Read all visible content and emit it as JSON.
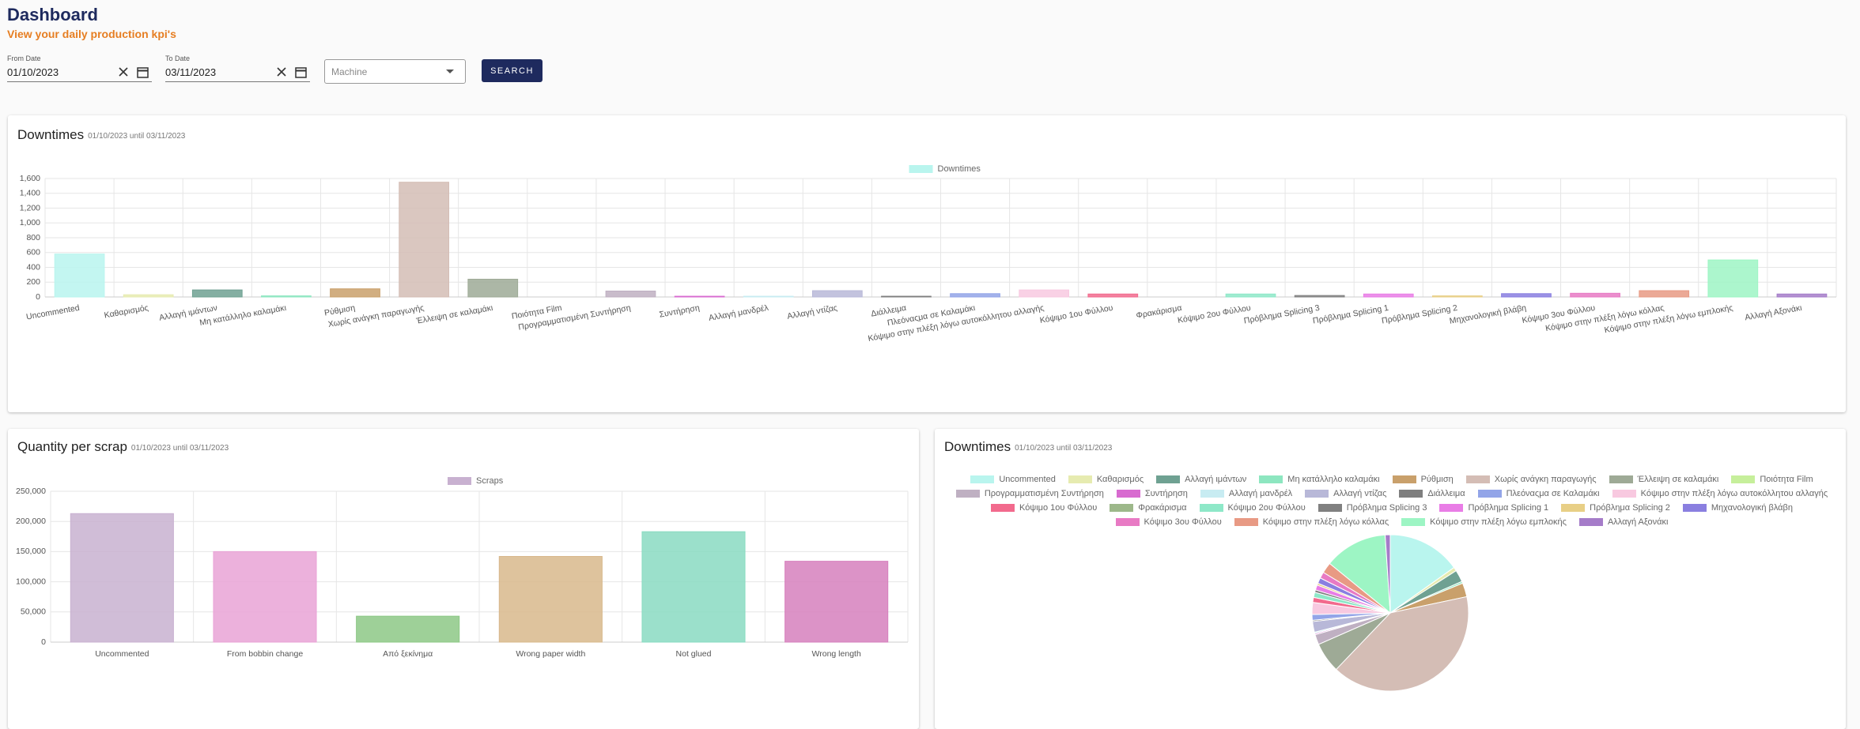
{
  "header": {
    "title": "Dashboard",
    "subtitle": "View your daily production kpi's"
  },
  "filters": {
    "from_label": "From Date",
    "from_value": "01/10/2023",
    "to_label": "To Date",
    "to_value": "03/11/2023",
    "machine_placeholder": "Machine",
    "search": "SEARCH"
  },
  "chart_data": [
    {
      "type": "bar",
      "title": "Downtimes",
      "subtitle": "01/10/2023 until 03/11/2023",
      "categories": [
        "Uncommented",
        "Καθαρισμός",
        "Αλλαγή ιμάντων",
        "Μη κατάλληλο καλαμάκι",
        "Ρύθμιση",
        "Χωρίς ανάγκη παραγωγής",
        "Έλλειψη σε καλαμάκι",
        "Ποιότητα Film",
        "Προγραμματισμένη Συντήρηση",
        "Συντήρηση",
        "Αλλαγή μανδρέλ",
        "Αλλαγή ντίζας",
        "Διάλλειμα",
        "Πλεόναςμα σε Καλαμάκι",
        "Κόψιμο στην πλέξη λόγω αυτοκόλλητου αλλαγής",
        "Κόψιμο 1ου Φύλλου",
        "Φρακάρισμα",
        "Κόψιμο 2ου Φύλλου",
        "Πρόβλημα Splicing 3",
        "Πρόβλημα Splicing 1",
        "Πρόβλημα Splicing 2",
        "Μηχανολογική βλάβη",
        "Κόψιμο 3ου Φύλλου",
        "Κόψιμο στην πλέξη λόγω κόλλας",
        "Κόψιμο στην πλέξη λόγω εμπλοκής",
        "Αλλαγή Αξονάκι"
      ],
      "series": [
        {
          "name": "Downtimes",
          "values": [
            580,
            30,
            95,
            15,
            110,
            1550,
            240,
            0,
            80,
            10,
            10,
            85,
            10,
            45,
            95,
            40,
            0,
            40,
            20,
            40,
            15,
            45,
            50,
            85,
            500,
            40
          ]
        }
      ],
      "colors": [
        "#b9f5ee",
        "#e6ebb0",
        "#6fa192",
        "#8de6c0",
        "#c9a06b",
        "#d4bdb5",
        "#9eaa96",
        "#c6ef9b",
        "#bfb0c2",
        "#d86bd0",
        "#c8ecf2",
        "#b8b8d8",
        "#7f7f7f",
        "#93a5e8",
        "#f8c9e0",
        "#f26a8d",
        "#9db88a",
        "#8ee8c8",
        "#808080",
        "#e97de6",
        "#e8cf86",
        "#8a7fe0",
        "#e87ac4",
        "#e89a84",
        "#9df5c4",
        "#a57cc9"
      ],
      "ylim": [
        0,
        1600
      ],
      "yticks": [
        0,
        200,
        400,
        600,
        800,
        {
          "value": 1000,
          "label": "1,000"
        },
        {
          "value": 1200,
          "label": "1,200"
        },
        {
          "value": 1400,
          "label": "1,400"
        },
        {
          "value": 1600,
          "label": "1,600"
        }
      ],
      "grid": true
    },
    {
      "type": "bar",
      "title": "Quantity per scrap",
      "subtitle": "01/10/2023 until 03/11/2023",
      "categories": [
        "Uncommented",
        "From bobbin change",
        "Από ξεκίνημα",
        "Wrong paper width",
        "Not glued",
        "Wrong length"
      ],
      "series": [
        {
          "name": "Scraps",
          "values": [
            213000,
            150000,
            43000,
            142000,
            183000,
            134000
          ]
        }
      ],
      "colors": [
        "#c8b1d0",
        "#e9a3d6",
        "#8dc886",
        "#d8b88c",
        "#8adbc2",
        "#d680bd"
      ],
      "ylim": [
        0,
        250000
      ],
      "yticks": [
        0,
        {
          "value": 50000,
          "label": "50,000"
        },
        {
          "value": 100000,
          "label": "100,000"
        },
        {
          "value": 150000,
          "label": "150,000"
        },
        {
          "value": 200000,
          "label": "200,000"
        },
        {
          "value": 250000,
          "label": "250,000"
        }
      ],
      "grid": true
    },
    {
      "type": "pie",
      "title": "Downtimes",
      "subtitle": "01/10/2023 until 03/11/2023",
      "categories": [
        "Uncommented",
        "Καθαρισμός",
        "Αλλαγή ιμάντων",
        "Μη κατάλληλο καλαμάκι",
        "Ρύθμιση",
        "Χωρίς ανάγκη παραγωγής",
        "Έλλειψη σε καλαμάκι",
        "Ποιότητα Film",
        "Προγραμματισμένη Συντήρηση",
        "Συντήρηση",
        "Αλλαγή μανδρέλ",
        "Αλλαγή ντίζας",
        "Διάλλειμα",
        "Πλεόναςμα σε Καλαμάκι",
        "Κόψιμο στην πλέξη λόγω αυτοκόλλητου αλλαγής",
        "Κόψιμο 1ου Φύλλου",
        "Φρακάρισμα",
        "Κόψιμο 2ου Φύλλου",
        "Πρόβλημα Splicing 3",
        "Πρόβλημα Splicing 1",
        "Πρόβλημα Splicing 2",
        "Μηχανολογική βλάβη",
        "Κόψιμο 3ου Φύλλου",
        "Κόψιμο στην πλέξη λόγω κόλλας",
        "Κόψιμο στην πλέξη λόγω εμπλοκής",
        "Αλλαγή Αξονάκι"
      ],
      "values": [
        580,
        30,
        95,
        15,
        110,
        1550,
        240,
        0,
        80,
        10,
        10,
        85,
        10,
        45,
        95,
        40,
        0,
        40,
        20,
        40,
        15,
        45,
        50,
        85,
        500,
        40
      ],
      "colors": [
        "#b9f5ee",
        "#e6ebb0",
        "#6fa192",
        "#8de6c0",
        "#c9a06b",
        "#d4bdb5",
        "#9eaa96",
        "#c6ef9b",
        "#bfb0c2",
        "#d86bd0",
        "#c8ecf2",
        "#b8b8d8",
        "#7f7f7f",
        "#93a5e8",
        "#f8c9e0",
        "#f26a8d",
        "#9db88a",
        "#8ee8c8",
        "#808080",
        "#e97de6",
        "#e8cf86",
        "#8a7fe0",
        "#e87ac4",
        "#e89a84",
        "#9df5c4",
        "#a57cc9"
      ]
    }
  ]
}
